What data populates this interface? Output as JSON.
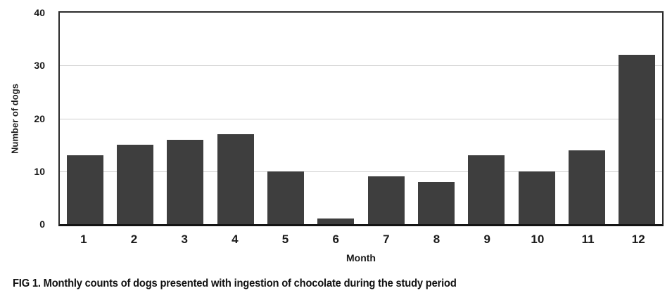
{
  "chart_data": {
    "type": "bar",
    "categories": [
      "1",
      "2",
      "3",
      "4",
      "5",
      "6",
      "7",
      "8",
      "9",
      "10",
      "11",
      "12"
    ],
    "values": [
      13,
      15,
      16,
      17,
      10,
      1,
      9,
      8,
      13,
      10,
      14,
      32
    ],
    "title": "",
    "xlabel": "Month",
    "ylabel": "Number of dogs",
    "ylim": [
      0,
      40
    ],
    "yticks": [
      0,
      10,
      20,
      30,
      40
    ],
    "gridlines": [
      10,
      20,
      30
    ],
    "legend": "none",
    "bar_color": "#3e3e3e",
    "grid_color": "#cecece",
    "frame_color": "#2b2b2b"
  },
  "caption": "FIG 1. Monthly counts of dogs presented with ingestion of chocolate during the study period"
}
